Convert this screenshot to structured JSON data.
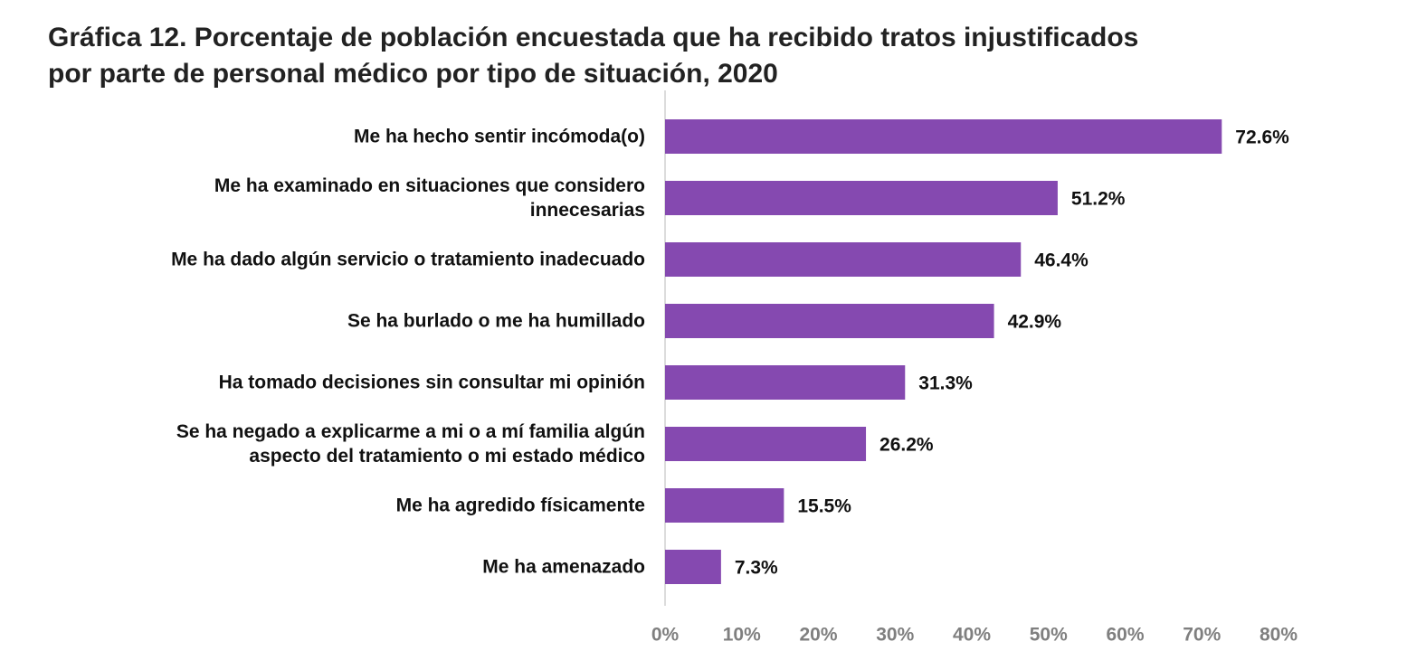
{
  "chart_data": {
    "type": "bar",
    "orientation": "horizontal",
    "title": "Gráfica 12. Porcentaje de población encuestada que ha recibido tratos injustificados\npor parte de personal médico por tipo de situación, 2020",
    "categories": [
      "Me ha hecho sentir incómoda(o)",
      "Me ha examinado en situaciones que considero\ninnecesarias",
      "Me ha dado algún servicio o tratamiento inadecuado",
      "Se ha burlado o me ha humillado",
      "Ha tomado decisiones sin consultar mi opinión",
      "Se ha negado a explicarme a mi o a mí familia algún\naspecto del tratamiento o mi estado médico",
      "Me ha agredido físicamente",
      "Me ha amenazado"
    ],
    "values": [
      72.6,
      51.2,
      46.4,
      42.9,
      31.3,
      26.2,
      15.5,
      7.3
    ],
    "value_labels": [
      "72.6%",
      "51.2%",
      "46.4%",
      "42.9%",
      "31.3%",
      "26.2%",
      "15.5%",
      "7.3%"
    ],
    "color": "#8549b0",
    "xlim": [
      0,
      80
    ],
    "xticks": [
      {
        "value": 0,
        "label": "0%"
      },
      {
        "value": 10,
        "label": "10%"
      },
      {
        "value": 20,
        "label": "20%"
      },
      {
        "value": 30,
        "label": "30%"
      },
      {
        "value": 40,
        "label": "40%"
      },
      {
        "value": 50,
        "label": "50%"
      },
      {
        "value": 60,
        "label": "60%"
      },
      {
        "value": 70,
        "label": "70%"
      },
      {
        "value": 80,
        "label": "80%"
      }
    ],
    "grid": false
  }
}
